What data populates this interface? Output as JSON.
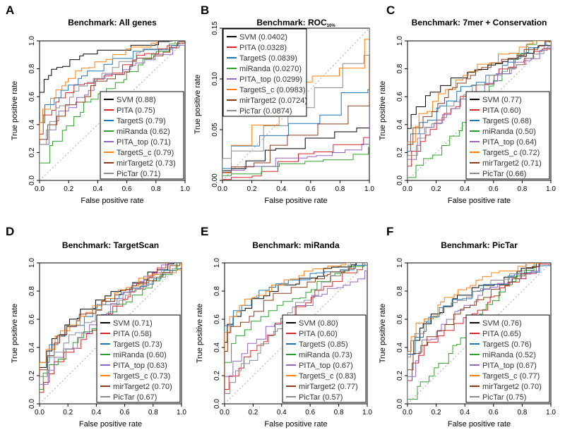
{
  "figure": {
    "colors": {
      "SVM": "#000000",
      "PITA": "#d62728",
      "TargetS": "#1f77b4",
      "miRanda": "#2ca02c",
      "PITA_top": "#9467bd",
      "TargetS_c": "#ff7f0e",
      "mirTarget2": "#8c3b1a",
      "PicTar": "#8c8c8c",
      "diagonal": "#aaaaaa"
    }
  },
  "chart_data": [
    {
      "type": "line",
      "panel_letter": "A",
      "title": "Benchmark: All genes",
      "title_suffix": "",
      "xlabel": "False positive rate",
      "ylabel": "True positive rate",
      "xlim": [
        0,
        1
      ],
      "ylim": [
        0,
        1
      ],
      "xticks": [
        "0.0",
        "0.2",
        "0.4",
        "0.6",
        "0.8",
        "1.0"
      ],
      "yticks": [
        "0.0",
        "0.2",
        "0.4",
        "0.6",
        "0.8",
        "1.0"
      ],
      "legend_position": "bottom-right",
      "series": [
        {
          "name": "SVM",
          "label": "SVM (0.88)",
          "auc": 0.88
        },
        {
          "name": "PITA",
          "label": "PITA (0.75)",
          "auc": 0.75
        },
        {
          "name": "TargetS",
          "label": "TargetS (0.79)",
          "auc": 0.79
        },
        {
          "name": "miRanda",
          "label": "miRanda (0.62)",
          "auc": 0.62
        },
        {
          "name": "PITA_top",
          "label": "PITA_top (0.71)",
          "auc": 0.71
        },
        {
          "name": "TargetS_c",
          "label": "TargetS_c (0.79)",
          "auc": 0.79
        },
        {
          "name": "mirTarget2",
          "label": "mirTarget2 (0.73)",
          "auc": 0.73
        },
        {
          "name": "PicTar",
          "label": "PicTar (0.71)",
          "auc": 0.71
        }
      ]
    },
    {
      "type": "line",
      "panel_letter": "B",
      "title": "Benchmark: ROC",
      "title_suffix": "10%",
      "xlabel": "False positive rate",
      "ylabel": "True positive rate",
      "xlim": [
        0,
        1
      ],
      "ylim": [
        0,
        0.15
      ],
      "xticks": [
        "0.0",
        "0.2",
        "0.4",
        "0.6",
        "0.8",
        "1.0"
      ],
      "yticks": [
        "0.00",
        "0.05",
        "0.10",
        "0.15"
      ],
      "legend_position": "top-left",
      "series": [
        {
          "name": "SVM",
          "label": "SVM (0.0402)",
          "auc": 0.0402
        },
        {
          "name": "PITA",
          "label": "PITA (0.0328)",
          "auc": 0.0328
        },
        {
          "name": "TargetS",
          "label": "TargetS (0.0839)",
          "auc": 0.0839
        },
        {
          "name": "miRanda",
          "label": "miRanda (0.0270)",
          "auc": 0.027
        },
        {
          "name": "PITA_top",
          "label": "PITA_top (0.0299)",
          "auc": 0.0299
        },
        {
          "name": "TargetS_c",
          "label": "TargetS_c (0.0983)",
          "auc": 0.0983
        },
        {
          "name": "mirTarget2",
          "label": "mirTarget2 (0.0724)",
          "auc": 0.0724
        },
        {
          "name": "PicTar",
          "label": "PicTar (0.0874)",
          "auc": 0.0874
        }
      ]
    },
    {
      "type": "line",
      "panel_letter": "C",
      "title": "Benchmark:  7mer + Conservation",
      "title_suffix": "",
      "xlabel": "False positive rate",
      "ylabel": "True positive rate",
      "xlim": [
        0,
        1
      ],
      "ylim": [
        0,
        1
      ],
      "xticks": [
        "0.0",
        "0.2",
        "0.4",
        "0.6",
        "0.8",
        "1.0"
      ],
      "yticks": [
        "0.0",
        "0.2",
        "0.4",
        "0.6",
        "0.8",
        "1.0"
      ],
      "legend_position": "bottom-right",
      "series": [
        {
          "name": "SVM",
          "label": "SVM (0.77)",
          "auc": 0.77
        },
        {
          "name": "PITA",
          "label": "PITA (0.60)",
          "auc": 0.6
        },
        {
          "name": "TargetS",
          "label": "TargetS (0.68)",
          "auc": 0.68
        },
        {
          "name": "miRanda",
          "label": "miRanda (0.50)",
          "auc": 0.5
        },
        {
          "name": "PITA_top",
          "label": "PITA_top (0.64)",
          "auc": 0.64
        },
        {
          "name": "TargetS_c",
          "label": "TargetS_c (0.72)",
          "auc": 0.72
        },
        {
          "name": "mirTarget2",
          "label": "mirTarget2 (0.71)",
          "auc": 0.71
        },
        {
          "name": "PicTar",
          "label": "PicTar (0.66)",
          "auc": 0.66
        }
      ]
    },
    {
      "type": "line",
      "panel_letter": "D",
      "title": "Benchmark: TargetScan",
      "title_suffix": "",
      "xlabel": "False positive rate",
      "ylabel": "True positive rate",
      "xlim": [
        0,
        1
      ],
      "ylim": [
        0,
        1
      ],
      "xticks": [
        "0.0",
        "0.2",
        "0.4",
        "0.6",
        "0.8",
        "1.0"
      ],
      "yticks": [
        "0.0",
        "0.2",
        "0.4",
        "0.6",
        "0.8",
        "1.0"
      ],
      "legend_position": "bottom-right",
      "series": [
        {
          "name": "SVM",
          "label": "SVM (0.71)",
          "auc": 0.71
        },
        {
          "name": "PITA",
          "label": "PITA (0.58)",
          "auc": 0.58
        },
        {
          "name": "TargetS",
          "label": "TargetS (0.73)",
          "auc": 0.73
        },
        {
          "name": "miRanda",
          "label": "miRanda (0.60)",
          "auc": 0.6
        },
        {
          "name": "PITA_top",
          "label": "PITA_top (0.63)",
          "auc": 0.63
        },
        {
          "name": "TargetS_c",
          "label": "TargetS_c (0.73)",
          "auc": 0.73
        },
        {
          "name": "mirTarget2",
          "label": "mirTarget2 (0.70)",
          "auc": 0.7
        },
        {
          "name": "PicTar",
          "label": "PicTar (0.67)",
          "auc": 0.67
        }
      ]
    },
    {
      "type": "line",
      "panel_letter": "E",
      "title": "Benchmark: miRanda",
      "title_suffix": "",
      "xlabel": "False positive rate",
      "ylabel": "True positive rate",
      "xlim": [
        0,
        1
      ],
      "ylim": [
        0,
        1
      ],
      "xticks": [
        "0.0",
        "0.2",
        "0.4",
        "0.6",
        "0.8",
        "1.0"
      ],
      "yticks": [
        "0.0",
        "0.2",
        "0.4",
        "0.6",
        "0.8",
        "1.0"
      ],
      "legend_position": "bottom-right",
      "series": [
        {
          "name": "SVM",
          "label": "SVM (0.80)",
          "auc": 0.8
        },
        {
          "name": "PITA",
          "label": "PITA (0.60)",
          "auc": 0.6
        },
        {
          "name": "TargetS",
          "label": "TargetS (0.85)",
          "auc": 0.85
        },
        {
          "name": "miRanda",
          "label": "miRanda (0.73)",
          "auc": 0.73
        },
        {
          "name": "PITA_top",
          "label": "PITA_top (0.67)",
          "auc": 0.67
        },
        {
          "name": "TargetS_c",
          "label": "TargetS_c (0.83)",
          "auc": 0.83
        },
        {
          "name": "mirTarget2",
          "label": "mirTarget2 (0.77)",
          "auc": 0.77
        },
        {
          "name": "PicTar",
          "label": "PicTar (0.57)",
          "auc": 0.57
        }
      ]
    },
    {
      "type": "line",
      "panel_letter": "F",
      "title": "Benchmark: PicTar",
      "title_suffix": "",
      "xlabel": "False positive rate",
      "ylabel": "True positive rate",
      "xlim": [
        0,
        1
      ],
      "ylim": [
        0,
        1
      ],
      "xticks": [
        "0.0",
        "0.2",
        "0.4",
        "0.6",
        "0.8",
        "1.0"
      ],
      "yticks": [
        "0.0",
        "0.2",
        "0.4",
        "0.6",
        "0.8",
        "1.0"
      ],
      "legend_position": "bottom-right",
      "series": [
        {
          "name": "SVM",
          "label": "SVM (0.76)",
          "auc": 0.76
        },
        {
          "name": "PITA",
          "label": "PITA (0.65)",
          "auc": 0.65
        },
        {
          "name": "TargetS",
          "label": "TargetS (0.76)",
          "auc": 0.76
        },
        {
          "name": "miRanda",
          "label": "miRanda (0.52)",
          "auc": 0.52
        },
        {
          "name": "PITA_top",
          "label": "PITA_top (0.67)",
          "auc": 0.67
        },
        {
          "name": "TargetS_c",
          "label": "TargetS_c (0.77)",
          "auc": 0.77
        },
        {
          "name": "mirTarget2",
          "label": "mirTarget2 (0.70)",
          "auc": 0.7
        },
        {
          "name": "PicTar",
          "label": "PicTar (0.75)",
          "auc": 0.75
        }
      ]
    }
  ]
}
